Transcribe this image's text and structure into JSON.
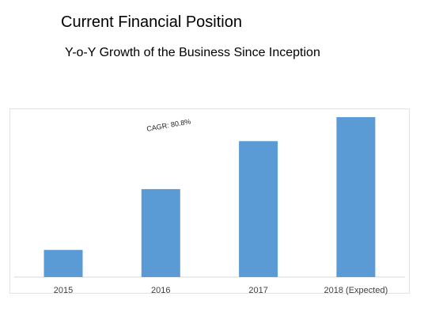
{
  "header": {
    "title": "Current Financial Position",
    "subtitle": "Y-o-Y Growth of the Business Since Inception"
  },
  "chart_data": {
    "type": "bar",
    "title": "",
    "xlabel": "",
    "ylabel": "",
    "categories": [
      "2015",
      "2016",
      "2017",
      "2018 (Expected)"
    ],
    "values": [
      17,
      55,
      85,
      100
    ],
    "ylim": [
      0,
      100
    ],
    "grid": false,
    "legend": "none",
    "bar_color": "#5b9bd5",
    "annotation": "CAGR: 80.8%"
  }
}
